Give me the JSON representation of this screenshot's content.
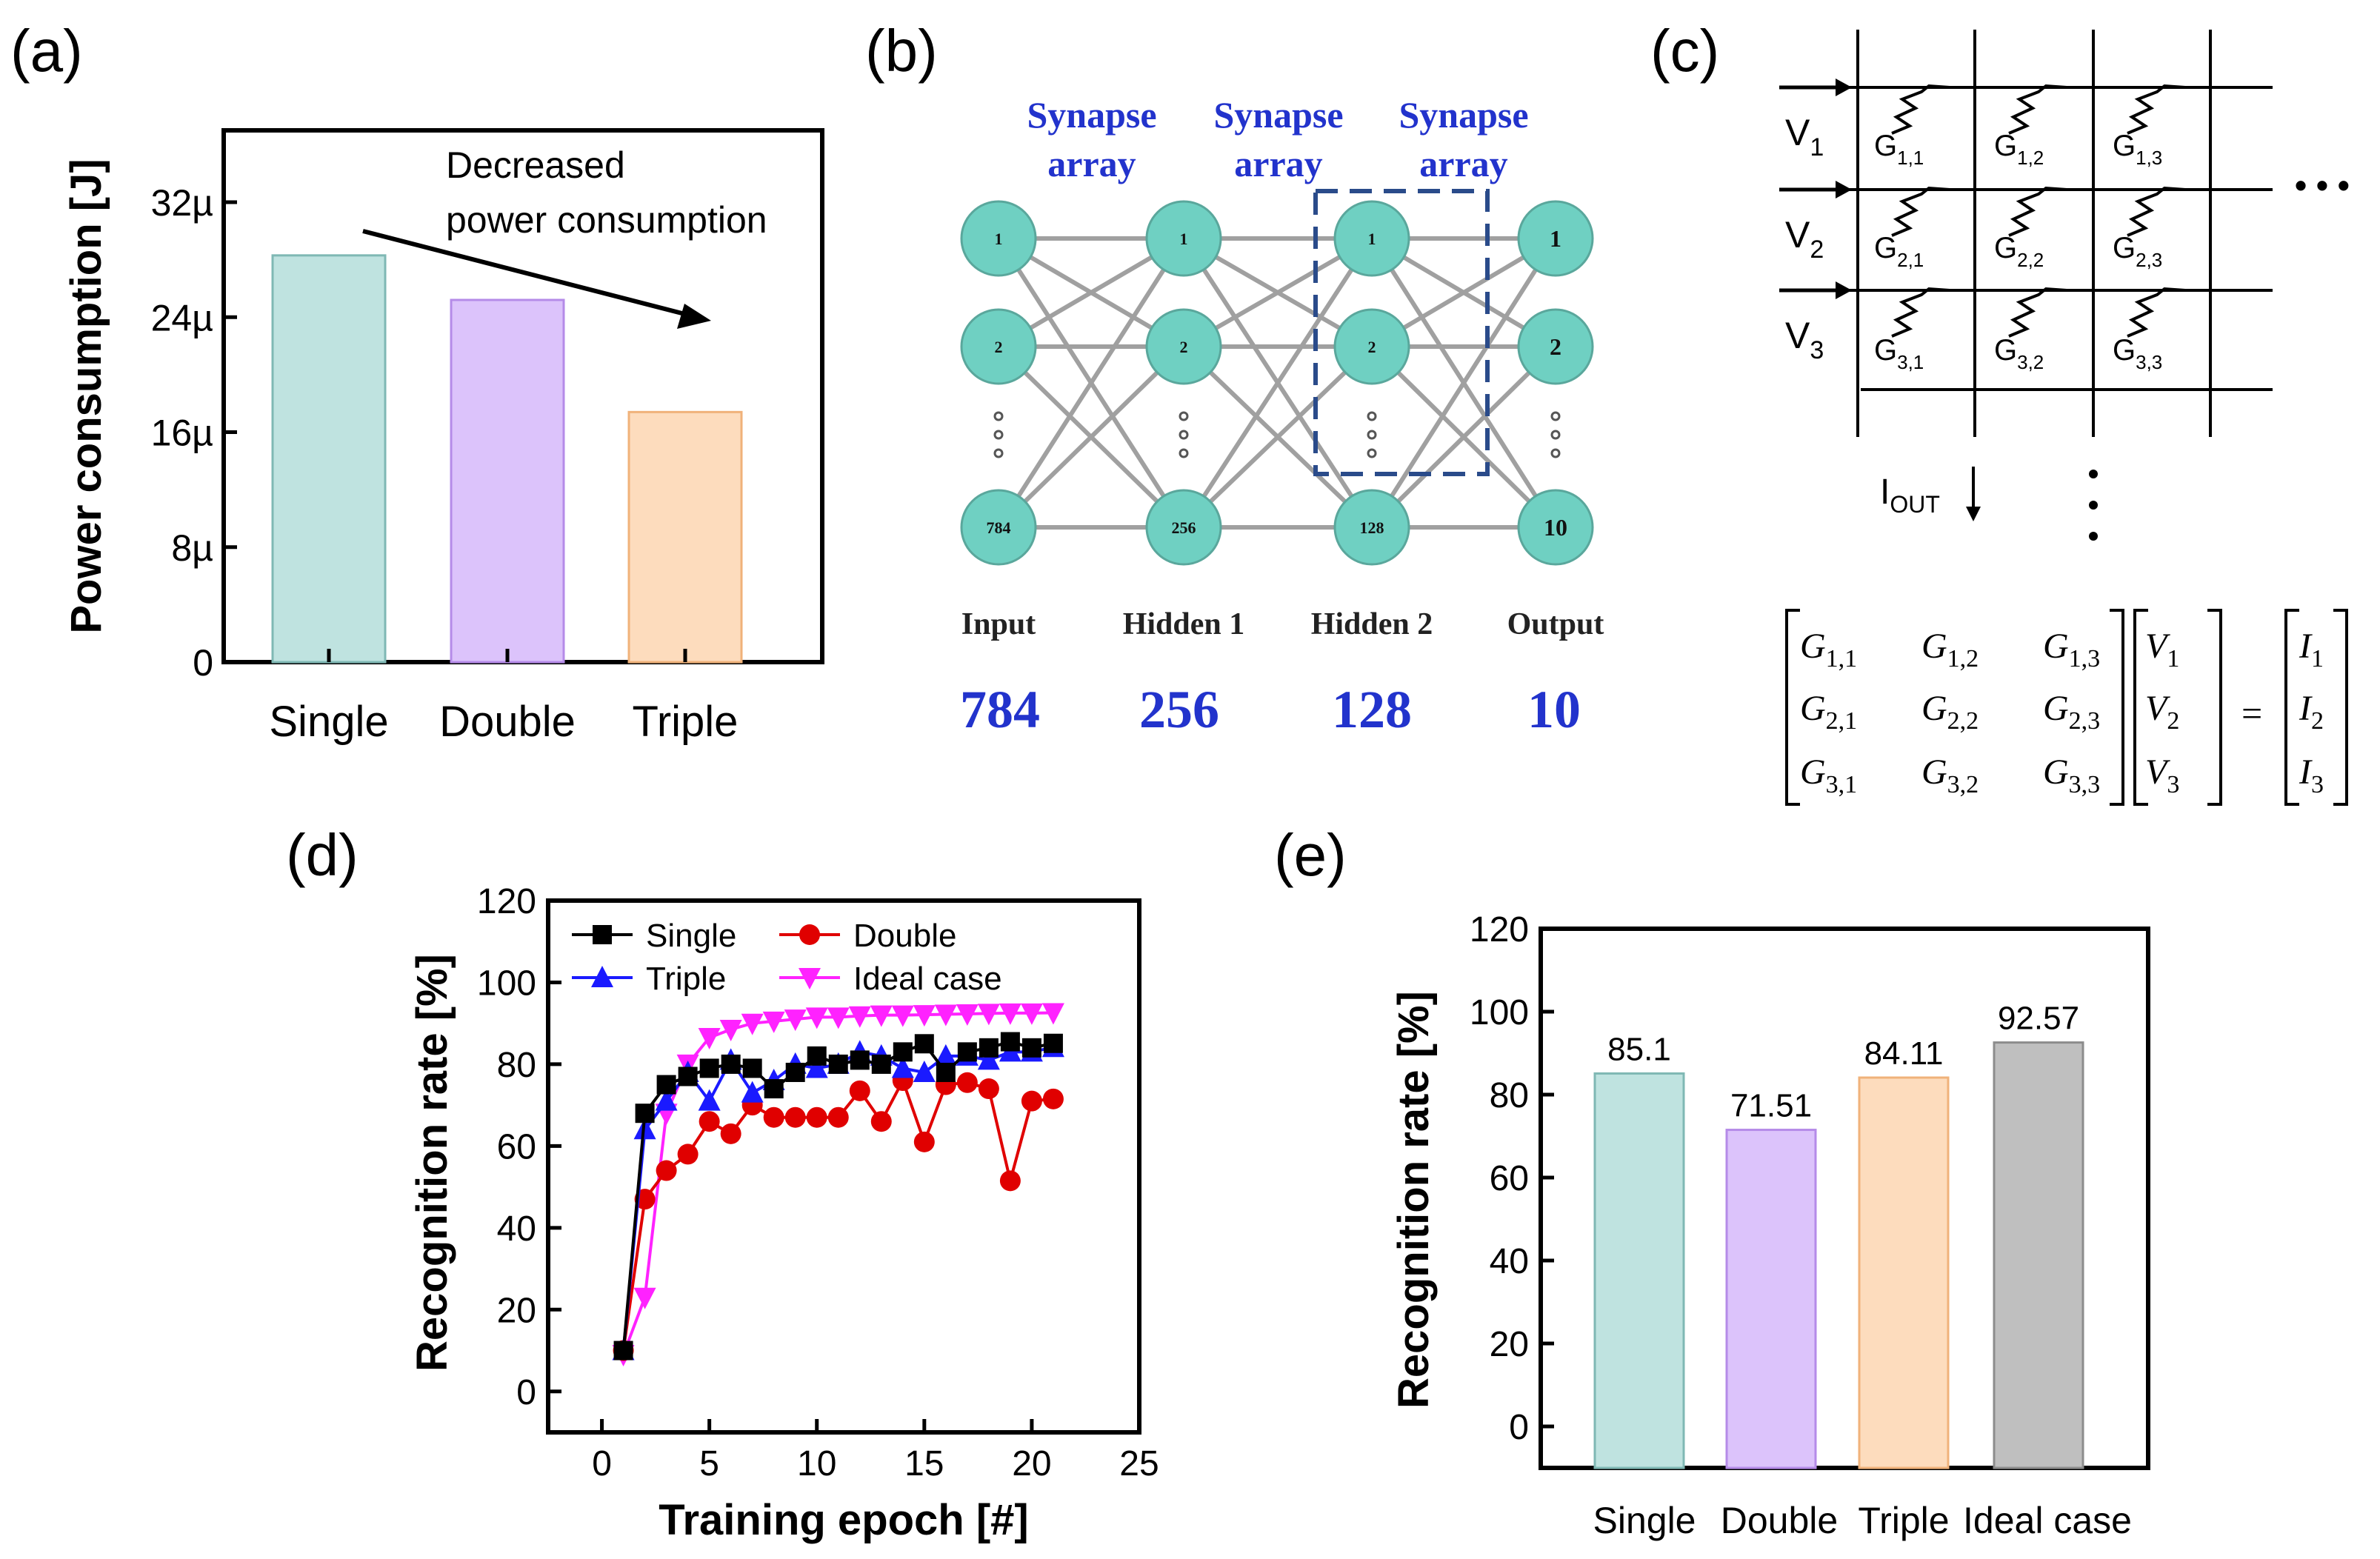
{
  "panel_labels": {
    "a": "(a)",
    "b": "(b)",
    "c": "(c)",
    "d": "(d)",
    "e": "(e)"
  },
  "colors": {
    "single": "#bfe3e0",
    "single_edge": "#7fb8b4",
    "double": "#dcc3fb",
    "double_edge": "#b58be8",
    "triple": "#fddcbd",
    "triple_edge": "#f0b27a",
    "ideal": "#bfbfbf",
    "ideal_edge": "#8c8c8c",
    "node": "#6fd0c2",
    "net_blue": "#2233cc",
    "box_blue": "#2a4b8a"
  },
  "chart_data": [
    {
      "panel": "a",
      "type": "bar",
      "ylabel": "Power consumption [J]",
      "categories": [
        "Single",
        "Double",
        "Triple"
      ],
      "values": [
        28.3,
        25.2,
        17.4
      ],
      "unit": "µJ",
      "ylim": [
        0,
        37
      ],
      "yticks": [
        0,
        8,
        16,
        24,
        32
      ],
      "ytick_labels": [
        "0",
        "8µ",
        "16µ",
        "24µ",
        "32µ"
      ],
      "annotation_lines": [
        "Decreased",
        "power consumption"
      ]
    },
    {
      "panel": "d",
      "type": "line",
      "xlabel": "Training epoch [#]",
      "ylabel": "Recognition rate [%]",
      "xlim": [
        -2.5,
        25
      ],
      "ylim": [
        -10,
        120
      ],
      "xticks": [
        0,
        5,
        10,
        15,
        20,
        25
      ],
      "yticks": [
        0,
        20,
        40,
        60,
        80,
        100,
        120
      ],
      "x": [
        1,
        2,
        3,
        4,
        5,
        6,
        7,
        8,
        9,
        10,
        11,
        12,
        13,
        14,
        15,
        16,
        17,
        18,
        19,
        20,
        21
      ],
      "series": [
        {
          "name": "Single",
          "color": "#000000",
          "marker": "square",
          "values": [
            10,
            68,
            75,
            77,
            79,
            80,
            79,
            74,
            78,
            82,
            80,
            81,
            80,
            83,
            85,
            78,
            83,
            84,
            85.5,
            84,
            85.1
          ]
        },
        {
          "name": "Double",
          "color": "#e00000",
          "marker": "circle",
          "values": [
            10,
            47,
            54,
            58,
            66,
            63,
            70,
            67,
            67,
            67,
            67,
            73.5,
            66,
            76,
            61,
            75,
            75.5,
            74,
            51.5,
            71,
            71.51
          ]
        },
        {
          "name": "Triple",
          "color": "#1a1aff",
          "marker": "triangle-up",
          "values": [
            10,
            64,
            71,
            78,
            71,
            81,
            73,
            76,
            80,
            79,
            80,
            83,
            82,
            79,
            78,
            82,
            82,
            81,
            83,
            83,
            84.11
          ]
        },
        {
          "name": "Ideal case",
          "color": "#ff22ff",
          "marker": "triangle-down",
          "values": [
            9,
            23,
            68,
            80,
            86.5,
            88.5,
            90,
            90.5,
            91,
            91.5,
            91.5,
            91.8,
            92,
            92,
            92.1,
            92.2,
            92.3,
            92.4,
            92.5,
            92.5,
            92.57
          ]
        }
      ]
    },
    {
      "panel": "e",
      "type": "bar",
      "ylabel": "Recognition rate [%]",
      "categories": [
        "Single",
        "Double",
        "Triple",
        "Ideal case"
      ],
      "values": [
        85.1,
        71.51,
        84.11,
        92.57
      ],
      "data_labels": [
        "85.1",
        "71.51",
        "84.11",
        "92.57"
      ],
      "ylim": [
        -10,
        120
      ],
      "yticks": [
        0,
        20,
        40,
        60,
        80,
        100,
        120
      ]
    }
  ],
  "network": {
    "synapse_labels": [
      [
        "Synapse",
        "array"
      ],
      [
        "Synapse",
        "array"
      ],
      [
        "Synapse",
        "array"
      ]
    ],
    "layers": [
      {
        "name": "Input",
        "count": "784",
        "nodes": [
          "1",
          "2",
          "784"
        ]
      },
      {
        "name": "Hidden 1",
        "count": "256",
        "nodes": [
          "1",
          "2",
          "256"
        ]
      },
      {
        "name": "Hidden 2",
        "count": "128",
        "nodes": [
          "1",
          "2",
          "128"
        ]
      },
      {
        "name": "Output",
        "count": "10",
        "nodes": [
          "1",
          "2",
          "10"
        ]
      }
    ]
  },
  "crossbar": {
    "voltages": [
      [
        "V",
        "1"
      ],
      [
        "V",
        "2"
      ],
      [
        "V",
        "3"
      ]
    ],
    "conductances": [
      [
        [
          "G",
          "1,1"
        ],
        [
          "G",
          "1,2"
        ],
        [
          "G",
          "1,3"
        ]
      ],
      [
        [
          "G",
          "2,1"
        ],
        [
          "G",
          "2,2"
        ],
        [
          "G",
          "2,3"
        ]
      ],
      [
        [
          "G",
          "3,1"
        ],
        [
          "G",
          "3,2"
        ],
        [
          "G",
          "3,3"
        ]
      ]
    ],
    "output_current": [
      "I",
      "OUT"
    ],
    "ellipsis": "• • •",
    "equation": {
      "G": [
        [
          [
            "G",
            "1,1"
          ],
          [
            "G",
            "1,2"
          ],
          [
            "G",
            "1,3"
          ]
        ],
        [
          [
            "G",
            "2,1"
          ],
          [
            "G",
            "2,2"
          ],
          [
            "G",
            "2,3"
          ]
        ],
        [
          [
            "G",
            "3,1"
          ],
          [
            "G",
            "3,2"
          ],
          [
            "G",
            "3,3"
          ]
        ]
      ],
      "V": [
        [
          "V",
          "1"
        ],
        [
          "V",
          "2"
        ],
        [
          "V",
          "3"
        ]
      ],
      "equals": "=",
      "I": [
        [
          "I",
          "1"
        ],
        [
          "I",
          "2"
        ],
        [
          "I",
          "3"
        ]
      ]
    }
  }
}
